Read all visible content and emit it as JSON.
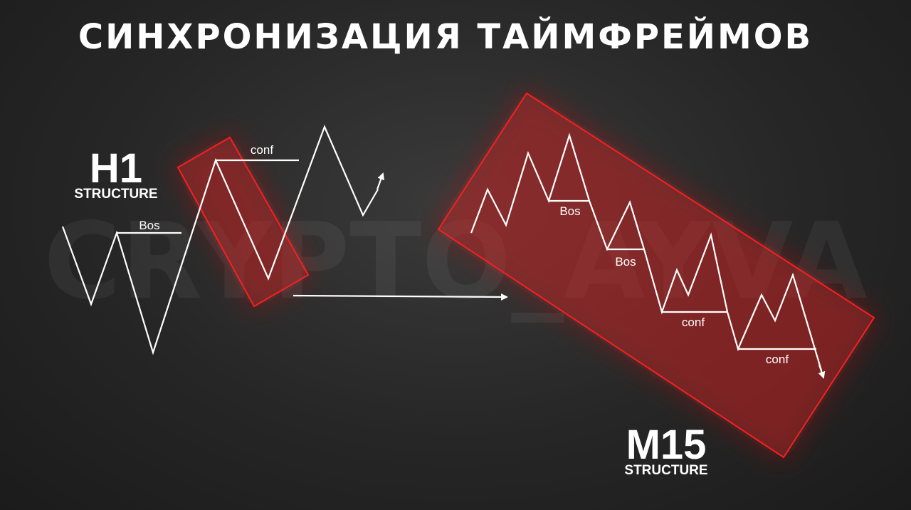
{
  "title": "СИНХРОНИЗАЦИЯ ТАЙМФРЕЙМОВ",
  "watermark": "CRYPTO_AYVA",
  "h1": {
    "label": "H1",
    "caption": "STRUCTURE"
  },
  "m15": {
    "label": "M15",
    "caption": "STRUCTURE"
  },
  "labels": {
    "h1_bos": "Bos",
    "h1_conf": "conf",
    "m15_bos_1": "Bos",
    "m15_bos_2": "Bos",
    "m15_conf_1": "conf",
    "m15_conf_2": "conf"
  },
  "colors": {
    "accent": "#ff1e1e",
    "zone_fill": "#d21a1a",
    "line": "#ffffff",
    "background": "#262626"
  }
}
